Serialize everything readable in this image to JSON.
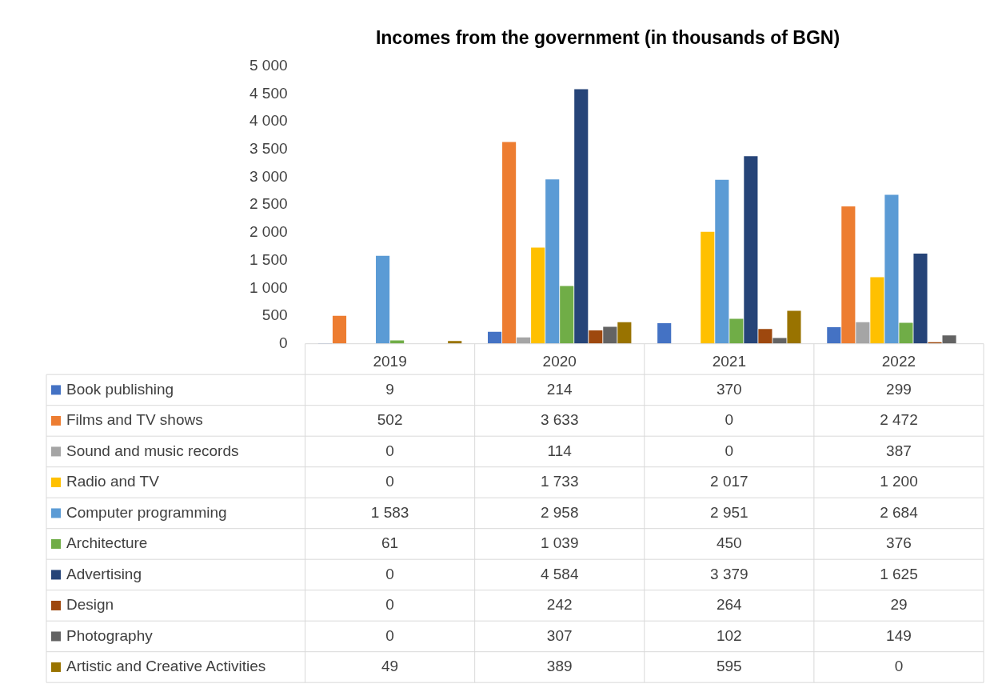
{
  "chart_data": {
    "type": "bar",
    "title": "Incomes from the government (in thousands of BGN)",
    "categories": [
      "2019",
      "2020",
      "2021",
      "2022"
    ],
    "series": [
      {
        "name": "Book publishing",
        "color": "#4472c4",
        "values": [
          9,
          214,
          370,
          299
        ],
        "value_labels": [
          "9",
          "214",
          "370",
          "299"
        ]
      },
      {
        "name": "Films and TV shows",
        "color": "#ed7d31",
        "values": [
          502,
          3633,
          0,
          2472
        ],
        "value_labels": [
          "502",
          "3 633",
          "0",
          "2 472"
        ]
      },
      {
        "name": "Sound and music records",
        "color": "#a5a5a5",
        "values": [
          0,
          114,
          0,
          387
        ],
        "value_labels": [
          "0",
          "114",
          "0",
          "387"
        ]
      },
      {
        "name": "Radio and TV",
        "color": "#ffc000",
        "values": [
          0,
          1733,
          2017,
          1200
        ],
        "value_labels": [
          "0",
          "1 733",
          "2 017",
          "1 200"
        ]
      },
      {
        "name": "Computer programming",
        "color": "#5b9bd5",
        "values": [
          1583,
          2958,
          2951,
          2684
        ],
        "value_labels": [
          "1 583",
          "2 958",
          "2 951",
          "2 684"
        ]
      },
      {
        "name": "Architecture",
        "color": "#70ad47",
        "values": [
          61,
          1039,
          450,
          376
        ],
        "value_labels": [
          "61",
          "1 039",
          "450",
          "376"
        ]
      },
      {
        "name": "Advertising",
        "color": "#264478",
        "values": [
          0,
          4584,
          3379,
          1625
        ],
        "value_labels": [
          "0",
          "4 584",
          "3 379",
          "1 625"
        ]
      },
      {
        "name": "Design",
        "color": "#9e480e",
        "values": [
          0,
          242,
          264,
          29
        ],
        "value_labels": [
          "0",
          "242",
          "264",
          "29"
        ]
      },
      {
        "name": "Photography",
        "color": "#636363",
        "values": [
          0,
          307,
          102,
          149
        ],
        "value_labels": [
          "0",
          "307",
          "102",
          "149"
        ]
      },
      {
        "name": "Artistic and Creative Activities",
        "color": "#997300",
        "values": [
          49,
          389,
          595,
          0
        ],
        "value_labels": [
          "49",
          "389",
          "595",
          "0"
        ]
      }
    ],
    "ylim": [
      0,
      5000
    ],
    "yticks": [
      0,
      500,
      {
        "value": 1000,
        "label": "1 000"
      },
      {
        "value": 1500,
        "label": "1 500"
      },
      {
        "value": 2000,
        "label": "2 000"
      },
      {
        "value": 2500,
        "label": "2 500"
      },
      {
        "value": 3000,
        "label": "3 000"
      },
      {
        "value": 3500,
        "label": "3 500"
      },
      {
        "value": 4000,
        "label": "4 000"
      },
      {
        "value": 4500,
        "label": "4 500"
      },
      {
        "value": 5000,
        "label": "5 000"
      }
    ],
    "grid": false,
    "legend": "bottom"
  }
}
